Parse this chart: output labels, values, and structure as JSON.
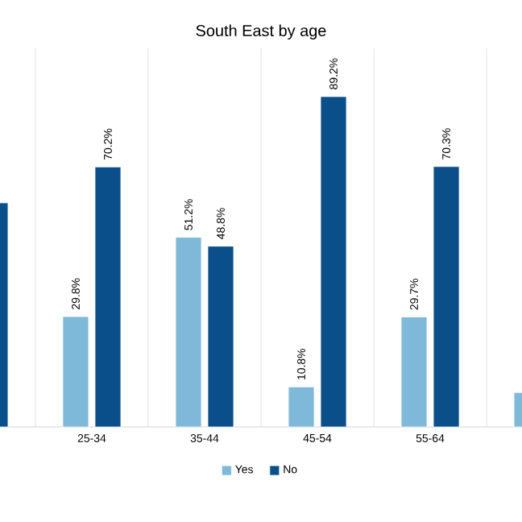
{
  "chart_data": {
    "type": "bar",
    "title": "South East by age",
    "categories": [
      null,
      "25-34",
      "35-44",
      "45-54",
      "55-64",
      null
    ],
    "series": [
      {
        "name": "Yes",
        "color": "#7fb9d9",
        "values": [
          null,
          29.8,
          51.2,
          10.8,
          29.7,
          9.3
        ],
        "value_labels": [
          null,
          "29.8%",
          "51.2%",
          "10.8%",
          "29.7%",
          null
        ]
      },
      {
        "name": "No",
        "color": "#0b4f8a",
        "values": [
          60.5,
          70.2,
          48.8,
          89.2,
          70.3,
          null
        ],
        "value_labels": [
          null,
          "70.2%",
          "48.8%",
          "89.2%",
          "70.3%",
          null
        ]
      }
    ],
    "grid": "x",
    "legend": "bottom"
  }
}
